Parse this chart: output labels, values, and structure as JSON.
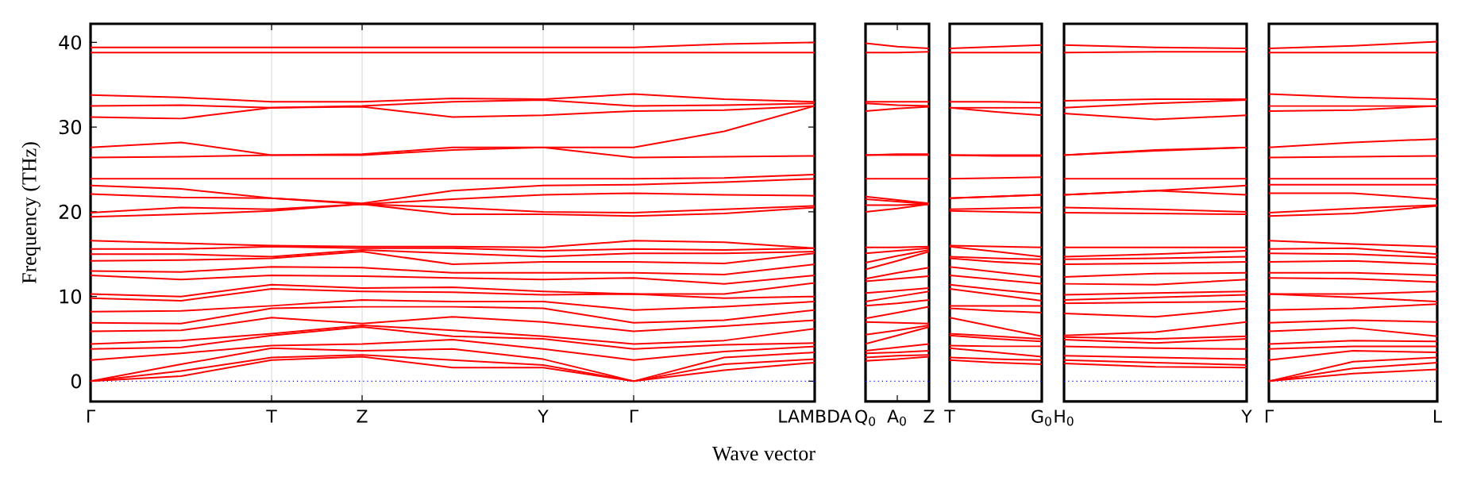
{
  "chart_data": [
    {
      "type": "line",
      "ylabel": "Frequency (THz)",
      "xlabel": "Wave vector",
      "color": "#ff0000",
      "grid": "x",
      "categories": [
        "Γ",
        null,
        "T",
        "Z",
        null,
        "Y",
        "Γ",
        null,
        "LAMBDA"
      ],
      "ylim": [
        -2.4,
        42.2
      ],
      "yticks": [
        0,
        10,
        20,
        30,
        40
      ],
      "ref_lines": [
        {
          "axis": "y",
          "value": 0,
          "color": "#0000ff",
          "line_style": "dotted"
        }
      ],
      "series": [
        {
          "values": [
            0,
            0.6,
            2.5,
            2.9,
            1.6,
            1.6,
            0,
            1.3,
            2.2
          ]
        },
        {
          "values": [
            0,
            1.2,
            2.8,
            3.1,
            2.5,
            1.9,
            0,
            2.0,
            2.6
          ]
        },
        {
          "values": [
            0,
            2.0,
            3.9,
            3.6,
            3.8,
            2.6,
            0,
            2.8,
            3.4
          ]
        },
        {
          "values": [
            2.5,
            3.3,
            4.2,
            4.4,
            4.9,
            3.8,
            2.5,
            3.5,
            4.1
          ]
        },
        {
          "values": [
            3.8,
            4.0,
            5.4,
            6.4,
            5.3,
            5.0,
            3.8,
            4.3,
            4.5
          ]
        },
        {
          "values": [
            4.4,
            4.8,
            5.6,
            6.6,
            6.0,
            5.3,
            4.4,
            4.8,
            6.2
          ]
        },
        {
          "values": [
            5.9,
            6.0,
            7.5,
            6.8,
            7.6,
            7.0,
            5.9,
            6.5,
            7.2
          ]
        },
        {
          "values": [
            6.9,
            6.8,
            8.6,
            8.8,
            8.8,
            8.6,
            6.9,
            7.2,
            8.4
          ]
        },
        {
          "values": [
            8.2,
            8.3,
            8.9,
            9.6,
            9.4,
            9.4,
            8.4,
            8.8,
            9.4
          ]
        },
        {
          "values": [
            9.8,
            9.5,
            10.9,
            10.6,
            10.5,
            10.2,
            10.3,
            9.8,
            10.0
          ]
        },
        {
          "values": [
            10.3,
            10.0,
            11.4,
            11.0,
            11.1,
            10.6,
            10.3,
            10.3,
            11.6
          ]
        },
        {
          "values": [
            12.5,
            12.0,
            12.5,
            12.4,
            12.2,
            12.0,
            12.2,
            11.5,
            12.5
          ]
        },
        {
          "values": [
            13,
            12.9,
            13.5,
            13.4,
            12.8,
            12.8,
            12.8,
            12.6,
            13.8
          ]
        },
        {
          "values": [
            14.2,
            14.3,
            14.5,
            15.3,
            13.8,
            14.1,
            14.1,
            13.9,
            15.1
          ]
        },
        {
          "values": [
            15,
            15.0,
            14.7,
            15.5,
            15.1,
            14.7,
            15.1,
            15.1,
            15.3
          ]
        },
        {
          "values": [
            15.6,
            15.6,
            15.9,
            15.7,
            15.7,
            15.4,
            15.6,
            15.5,
            15.7
          ]
        },
        {
          "values": [
            16.6,
            16.3,
            16.0,
            15.9,
            15.9,
            15.8,
            16.6,
            16.4,
            15.7
          ]
        },
        {
          "values": [
            19.4,
            19.7,
            20.1,
            20.9,
            19.7,
            19.7,
            19.5,
            19.8,
            20.5
          ]
        },
        {
          "values": [
            19.9,
            20.5,
            20.3,
            20.9,
            20.5,
            20.0,
            19.9,
            20.3,
            20.7
          ]
        },
        {
          "values": [
            22.1,
            21.7,
            21.6,
            20.9,
            21.5,
            22.0,
            22.2,
            22.0,
            21.9
          ]
        },
        {
          "values": [
            23.1,
            22.7,
            21.6,
            21.0,
            22.5,
            23.1,
            23.2,
            23.5,
            23.9
          ]
        },
        {
          "values": [
            23.9,
            23.9,
            23.9,
            23.9,
            23.9,
            23.9,
            23.9,
            24.0,
            24.4
          ]
        },
        {
          "values": [
            26.4,
            26.5,
            26.7,
            26.7,
            27.3,
            27.6,
            26.4,
            26.5,
            26.6
          ]
        },
        {
          "values": [
            27.6,
            28.2,
            26.7,
            26.8,
            27.6,
            27.6,
            27.6,
            29.5,
            32.5
          ]
        },
        {
          "values": [
            31.2,
            31.0,
            32.3,
            32.4,
            31.2,
            31.4,
            31.9,
            32.0,
            32.5
          ]
        },
        {
          "values": [
            32.5,
            32.6,
            32.3,
            32.5,
            33.0,
            33.2,
            32.5,
            32.6,
            32.8
          ]
        },
        {
          "values": [
            33.8,
            33.5,
            33.0,
            33.0,
            33.4,
            33.3,
            33.9,
            33.3,
            33.0
          ]
        },
        {
          "values": [
            38.8,
            38.8,
            38.8,
            38.8,
            38.8,
            38.8,
            38.8,
            38.8,
            38.8
          ]
        },
        {
          "values": [
            39.4,
            39.4,
            39.4,
            39.4,
            39.4,
            39.4,
            39.4,
            39.8,
            40.0
          ]
        }
      ]
    },
    {
      "type": "line",
      "color": "#ff0000",
      "tick_labels": "x",
      "categories": [
        "Q$_{0}$",
        "A$_{0}$",
        "Z"
      ],
      "ylim": [
        -2.4,
        42.2
      ],
      "ref_lines": [
        {
          "axis": "y",
          "value": 0,
          "color": "#0000ff",
          "line_style": "dotted"
        }
      ],
      "series": [
        {
          "values": [
            2.4,
            2.6,
            2.9
          ]
        },
        {
          "values": [
            2.8,
            3.0,
            3.1
          ]
        },
        {
          "values": [
            3.3,
            3.4,
            3.6
          ]
        },
        {
          "values": [
            3.6,
            4.0,
            4.4
          ]
        },
        {
          "values": [
            4.4,
            5.4,
            6.4
          ]
        },
        {
          "values": [
            5.5,
            6.0,
            6.6
          ]
        },
        {
          "values": [
            7.0,
            6.9,
            6.8
          ]
        },
        {
          "values": [
            7.4,
            8.1,
            8.8
          ]
        },
        {
          "values": [
            8.9,
            9.2,
            9.6
          ]
        },
        {
          "values": [
            9.4,
            10.0,
            10.6
          ]
        },
        {
          "values": [
            10.4,
            10.7,
            11.0
          ]
        },
        {
          "values": [
            11.8,
            12.1,
            12.4
          ]
        },
        {
          "values": [
            12.1,
            12.8,
            13.4
          ]
        },
        {
          "values": [
            13.2,
            14.2,
            15.3
          ]
        },
        {
          "values": [
            14.0,
            14.8,
            15.5
          ]
        },
        {
          "values": [
            15.1,
            15.4,
            15.7
          ]
        },
        {
          "values": [
            15.8,
            15.8,
            15.9
          ]
        },
        {
          "values": [
            20.0,
            20.4,
            20.9
          ]
        },
        {
          "values": [
            20.8,
            20.8,
            20.9
          ]
        },
        {
          "values": [
            21.5,
            21.2,
            20.9
          ]
        },
        {
          "values": [
            21.8,
            21.4,
            21.0
          ]
        },
        {
          "values": [
            23.9,
            23.9,
            23.9
          ]
        },
        {
          "values": [
            26.7,
            26.7,
            26.7
          ]
        },
        {
          "values": [
            26.7,
            26.8,
            26.8
          ]
        },
        {
          "values": [
            31.9,
            32.2,
            32.4
          ]
        },
        {
          "values": [
            32.8,
            32.6,
            32.5
          ]
        },
        {
          "values": [
            33.0,
            33.0,
            33.0
          ]
        },
        {
          "values": [
            38.8,
            38.8,
            38.9
          ]
        },
        {
          "values": [
            39.9,
            39.5,
            39.3
          ]
        }
      ]
    },
    {
      "type": "line",
      "color": "#ff0000",
      "tick_labels": "x",
      "categories": [
        "T",
        null,
        "G$_{0}$"
      ],
      "ylim": [
        -2.4,
        42.2
      ],
      "ref_lines": [
        {
          "axis": "y",
          "value": 0,
          "color": "#0000ff",
          "line_style": "dotted"
        }
      ],
      "series": [
        {
          "values": [
            2.5,
            2.2,
            2.0
          ]
        },
        {
          "values": [
            2.8,
            2.6,
            2.5
          ]
        },
        {
          "values": [
            3.9,
            3.4,
            2.9
          ]
        },
        {
          "values": [
            4.2,
            4.1,
            4.1
          ]
        },
        {
          "values": [
            5.4,
            5.0,
            4.7
          ]
        },
        {
          "values": [
            5.6,
            5.3,
            5.0
          ]
        },
        {
          "values": [
            7.5,
            6.4,
            5.3
          ]
        },
        {
          "values": [
            8.6,
            8.3,
            8.1
          ]
        },
        {
          "values": [
            8.9,
            8.9,
            8.9
          ]
        },
        {
          "values": [
            10.9,
            10.2,
            9.5
          ]
        },
        {
          "values": [
            11.4,
            10.8,
            10.3
          ]
        },
        {
          "values": [
            12.5,
            12.0,
            11.5
          ]
        },
        {
          "values": [
            13.5,
            12.9,
            12.3
          ]
        },
        {
          "values": [
            14.5,
            14.1,
            13.8
          ]
        },
        {
          "values": [
            14.7,
            14.5,
            14.4
          ]
        },
        {
          "values": [
            15.9,
            15.3,
            14.7
          ]
        },
        {
          "values": [
            16.0,
            15.9,
            15.8
          ]
        },
        {
          "values": [
            20.1,
            20.0,
            19.9
          ]
        },
        {
          "values": [
            20.3,
            20.4,
            20.5
          ]
        },
        {
          "values": [
            21.6,
            21.8,
            22.0
          ]
        },
        {
          "values": [
            21.6,
            21.8,
            22.0
          ]
        },
        {
          "values": [
            23.9,
            24.0,
            24.1
          ]
        },
        {
          "values": [
            26.7,
            26.6,
            26.6
          ]
        },
        {
          "values": [
            26.7,
            26.7,
            26.7
          ]
        },
        {
          "values": [
            32.3,
            31.8,
            31.4
          ]
        },
        {
          "values": [
            32.3,
            32.3,
            32.3
          ]
        },
        {
          "values": [
            33.0,
            33.0,
            32.9
          ]
        },
        {
          "values": [
            38.8,
            38.8,
            38.8
          ]
        },
        {
          "values": [
            39.3,
            39.5,
            39.7
          ]
        }
      ]
    },
    {
      "type": "line",
      "color": "#ff0000",
      "tick_labels": "x",
      "categories": [
        "H$_{0}$",
        null,
        "Y"
      ],
      "ylim": [
        -2.4,
        42.2
      ],
      "ref_lines": [
        {
          "axis": "y",
          "value": 0,
          "color": "#0000ff",
          "line_style": "dotted"
        }
      ],
      "series": [
        {
          "values": [
            2.1,
            1.7,
            1.6
          ]
        },
        {
          "values": [
            2.5,
            2.2,
            1.9
          ]
        },
        {
          "values": [
            3.0,
            2.8,
            2.6
          ]
        },
        {
          "values": [
            4.1,
            3.9,
            3.8
          ]
        },
        {
          "values": [
            4.9,
            4.5,
            5.0
          ]
        },
        {
          "values": [
            5.2,
            5.0,
            5.3
          ]
        },
        {
          "values": [
            5.4,
            5.8,
            7.0
          ]
        },
        {
          "values": [
            8.0,
            7.6,
            8.6
          ]
        },
        {
          "values": [
            9.2,
            9.3,
            9.4
          ]
        },
        {
          "values": [
            9.6,
            9.9,
            10.2
          ]
        },
        {
          "values": [
            10.2,
            10.4,
            10.6
          ]
        },
        {
          "values": [
            11.5,
            11.4,
            12.0
          ]
        },
        {
          "values": [
            12.3,
            12.7,
            12.8
          ]
        },
        {
          "values": [
            13.8,
            13.9,
            14.1
          ]
        },
        {
          "values": [
            14.4,
            14.5,
            14.7
          ]
        },
        {
          "values": [
            14.7,
            15.0,
            15.4
          ]
        },
        {
          "values": [
            15.8,
            15.8,
            15.8
          ]
        },
        {
          "values": [
            19.9,
            19.8,
            19.7
          ]
        },
        {
          "values": [
            20.5,
            20.3,
            20.0
          ]
        },
        {
          "values": [
            22.0,
            22.5,
            22.0
          ]
        },
        {
          "values": [
            22.0,
            22.5,
            23.1
          ]
        },
        {
          "values": [
            23.9,
            23.9,
            23.9
          ]
        },
        {
          "values": [
            26.7,
            27.2,
            27.6
          ]
        },
        {
          "values": [
            26.7,
            27.3,
            27.6
          ]
        },
        {
          "values": [
            31.6,
            30.9,
            31.4
          ]
        },
        {
          "values": [
            32.3,
            32.8,
            33.2
          ]
        },
        {
          "values": [
            33.1,
            33.3,
            33.3
          ]
        },
        {
          "values": [
            38.8,
            38.9,
            38.9
          ]
        },
        {
          "values": [
            39.7,
            39.4,
            39.3
          ]
        }
      ]
    },
    {
      "type": "line",
      "color": "#ff0000",
      "tick_labels": "x",
      "categories": [
        "Γ",
        null,
        "L"
      ],
      "ylim": [
        -2.4,
        42.2
      ],
      "ref_lines": [
        {
          "axis": "y",
          "value": 0,
          "color": "#0000ff",
          "line_style": "dotted"
        }
      ],
      "series": [
        {
          "values": [
            0,
            0.9,
            1.4
          ]
        },
        {
          "values": [
            0,
            1.5,
            2.2
          ]
        },
        {
          "values": [
            0,
            2.3,
            2.8
          ]
        },
        {
          "values": [
            2.5,
            3.6,
            3.4
          ]
        },
        {
          "values": [
            3.8,
            4.1,
            4.1
          ]
        },
        {
          "values": [
            4.4,
            4.8,
            4.7
          ]
        },
        {
          "values": [
            5.9,
            6.3,
            5.3
          ]
        },
        {
          "values": [
            6.9,
            7.2,
            7.0
          ]
        },
        {
          "values": [
            8.4,
            8.6,
            9.1
          ]
        },
        {
          "values": [
            10.3,
            9.9,
            9.4
          ]
        },
        {
          "values": [
            10.3,
            10.3,
            10.6
          ]
        },
        {
          "values": [
            12.2,
            12.1,
            11.7
          ]
        },
        {
          "values": [
            12.8,
            12.8,
            12.5
          ]
        },
        {
          "values": [
            14.1,
            14.2,
            13.8
          ]
        },
        {
          "values": [
            15.1,
            15.0,
            14.6
          ]
        },
        {
          "values": [
            15.6,
            15.7,
            15.0
          ]
        },
        {
          "values": [
            16.6,
            16.2,
            15.9
          ]
        },
        {
          "values": [
            19.5,
            19.8,
            20.7
          ]
        },
        {
          "values": [
            19.9,
            20.4,
            20.8
          ]
        },
        {
          "values": [
            22.2,
            22.2,
            21.5
          ]
        },
        {
          "values": [
            23.2,
            23.2,
            23.2
          ]
        },
        {
          "values": [
            23.9,
            23.9,
            23.9
          ]
        },
        {
          "values": [
            26.4,
            26.5,
            26.6
          ]
        },
        {
          "values": [
            27.6,
            28.2,
            28.6
          ]
        },
        {
          "values": [
            31.9,
            32.0,
            32.5
          ]
        },
        {
          "values": [
            32.5,
            32.5,
            32.5
          ]
        },
        {
          "values": [
            33.9,
            33.5,
            33.3
          ]
        },
        {
          "values": [
            38.8,
            38.8,
            38.8
          ]
        },
        {
          "values": [
            39.3,
            39.6,
            40.1
          ]
        }
      ]
    }
  ]
}
